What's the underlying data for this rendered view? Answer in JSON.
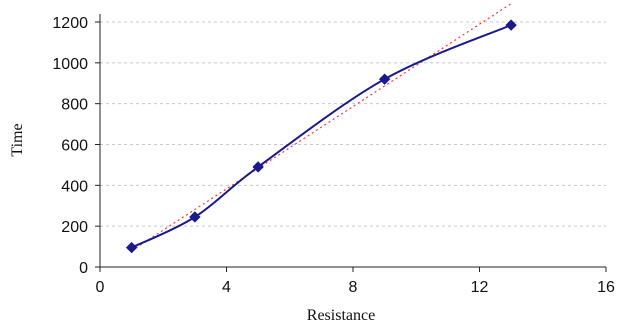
{
  "chart_data": {
    "type": "line",
    "title": "",
    "xlabel": "Resistance",
    "ylabel": "Time",
    "xlim": [
      0,
      16
    ],
    "ylim": [
      0,
      1200
    ],
    "xticks": [
      0,
      4,
      8,
      12,
      16
    ],
    "yticks": [
      0,
      200,
      400,
      600,
      800,
      1000,
      1200
    ],
    "grid": "horizontal dashed",
    "legend": "none",
    "series": [
      {
        "values_x": [
          1,
          3,
          5,
          9,
          13
        ],
        "values_y": [
          95,
          245,
          490,
          920,
          1185
        ],
        "color": "#1a1a8c",
        "style": "solid line with diamond markers"
      }
    ],
    "trendline": {
      "type": "linear",
      "color": "#ff3333",
      "style": "dotted",
      "x": [
        1,
        13
      ],
      "y": [
        80,
        1290
      ]
    }
  }
}
